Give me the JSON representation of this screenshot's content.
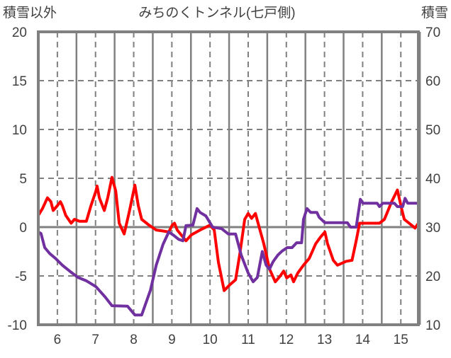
{
  "chart_data": {
    "type": "line",
    "title": "みちのくトンネル(七戸側)",
    "ylabel": "積雪以外",
    "y2label": "積雪",
    "xlim": [
      5.5,
      15.46
    ],
    "ylim": [
      -10,
      20
    ],
    "y2lim": [
      10,
      70
    ],
    "yticks": [
      -10,
      -5,
      0,
      5,
      10,
      15,
      20
    ],
    "y2ticks": [
      10,
      20,
      30,
      40,
      50,
      60,
      70
    ],
    "xticks": [
      6,
      7,
      8,
      9,
      10,
      11,
      12,
      13,
      14,
      15
    ],
    "grid": true,
    "colors": {
      "red": "#ff0000",
      "purple": "#7030a0",
      "frame": "#808080"
    },
    "series": [
      {
        "name": "積雪以外",
        "axis": "left",
        "color": "#ff0000",
        "points": [
          [
            5.5,
            1.2
          ],
          [
            5.61,
            1.9
          ],
          [
            5.74,
            3.0
          ],
          [
            5.83,
            2.6
          ],
          [
            5.89,
            1.7
          ],
          [
            5.98,
            2.1
          ],
          [
            6.08,
            2.6
          ],
          [
            6.13,
            2.2
          ],
          [
            6.22,
            1.2
          ],
          [
            6.36,
            0.4
          ],
          [
            6.45,
            0.8
          ],
          [
            6.58,
            0.6
          ],
          [
            6.76,
            0.6
          ],
          [
            6.88,
            2.2
          ],
          [
            7.01,
            3.7
          ],
          [
            7.04,
            4.2
          ],
          [
            7.1,
            3.0
          ],
          [
            7.23,
            1.7
          ],
          [
            7.32,
            3.0
          ],
          [
            7.43,
            5.1
          ],
          [
            7.53,
            3.7
          ],
          [
            7.62,
            0.4
          ],
          [
            7.75,
            -0.7
          ],
          [
            7.88,
            1.5
          ],
          [
            8.03,
            4.3
          ],
          [
            8.12,
            2.2
          ],
          [
            8.21,
            0.8
          ],
          [
            8.4,
            0.2
          ],
          [
            8.59,
            -0.3
          ],
          [
            8.77,
            -0.4
          ],
          [
            8.92,
            -0.5
          ],
          [
            9.01,
            0.2
          ],
          [
            9.07,
            0.4
          ],
          [
            9.14,
            -0.3
          ],
          [
            9.37,
            -1.4
          ],
          [
            9.51,
            -0.8
          ],
          [
            9.74,
            -0.3
          ],
          [
            10.0,
            0.2
          ],
          [
            10.11,
            -0.3
          ],
          [
            10.22,
            -3.6
          ],
          [
            10.37,
            -6.5
          ],
          [
            10.52,
            -5.9
          ],
          [
            10.67,
            -5.4
          ],
          [
            10.78,
            -2.8
          ],
          [
            10.91,
            0.8
          ],
          [
            11.0,
            1.4
          ],
          [
            11.09,
            0.9
          ],
          [
            11.19,
            1.4
          ],
          [
            11.28,
            0.1
          ],
          [
            11.41,
            -1.7
          ],
          [
            11.56,
            -4.3
          ],
          [
            11.71,
            -5.6
          ],
          [
            11.84,
            -5.0
          ],
          [
            11.93,
            -4.5
          ],
          [
            12.01,
            -5.2
          ],
          [
            12.12,
            -4.9
          ],
          [
            12.19,
            -5.6
          ],
          [
            12.3,
            -4.7
          ],
          [
            12.45,
            -3.9
          ],
          [
            12.6,
            -3.2
          ],
          [
            12.77,
            -1.7
          ],
          [
            12.9,
            -1.0
          ],
          [
            13.01,
            -0.5
          ],
          [
            13.08,
            -1.7
          ],
          [
            13.23,
            -3.4
          ],
          [
            13.34,
            -3.9
          ],
          [
            13.57,
            -3.5
          ],
          [
            13.72,
            -3.4
          ],
          [
            13.83,
            -1.4
          ],
          [
            13.92,
            0.4
          ],
          [
            14.16,
            0.4
          ],
          [
            14.44,
            0.4
          ],
          [
            14.57,
            0.8
          ],
          [
            14.76,
            2.6
          ],
          [
            14.91,
            3.8
          ],
          [
            15.02,
            1.9
          ],
          [
            15.09,
            0.8
          ],
          [
            15.28,
            0.2
          ],
          [
            15.37,
            -0.1
          ],
          [
            15.46,
            0.4
          ]
        ]
      },
      {
        "name": "積雪",
        "axis": "right",
        "color": "#7030a0",
        "points": [
          [
            5.5,
            29.0
          ],
          [
            5.57,
            28.7
          ],
          [
            5.67,
            25.8
          ],
          [
            5.8,
            24.6
          ],
          [
            5.95,
            23.6
          ],
          [
            6.13,
            22.2
          ],
          [
            6.32,
            21.0
          ],
          [
            6.54,
            19.7
          ],
          [
            6.76,
            19.0
          ],
          [
            7.01,
            17.8
          ],
          [
            7.25,
            15.7
          ],
          [
            7.43,
            13.9
          ],
          [
            7.84,
            13.8
          ],
          [
            8.03,
            12.0
          ],
          [
            8.21,
            12.0
          ],
          [
            8.44,
            17.1
          ],
          [
            8.59,
            22.2
          ],
          [
            8.77,
            26.5
          ],
          [
            8.92,
            29.0
          ],
          [
            9.05,
            28.3
          ],
          [
            9.18,
            27.5
          ],
          [
            9.29,
            27.2
          ],
          [
            9.37,
            30.3
          ],
          [
            9.55,
            30.4
          ],
          [
            9.66,
            33.8
          ],
          [
            9.74,
            33.0
          ],
          [
            9.89,
            32.3
          ],
          [
            10.07,
            30.0
          ],
          [
            10.3,
            29.7
          ],
          [
            10.48,
            28.6
          ],
          [
            10.67,
            28.6
          ],
          [
            10.82,
            24.2
          ],
          [
            11.0,
            20.6
          ],
          [
            11.13,
            18.8
          ],
          [
            11.24,
            19.7
          ],
          [
            11.37,
            25.0
          ],
          [
            11.47,
            22.2
          ],
          [
            11.56,
            21.4
          ],
          [
            11.65,
            22.9
          ],
          [
            11.78,
            24.3
          ],
          [
            11.89,
            25.1
          ],
          [
            12.02,
            25.8
          ],
          [
            12.15,
            25.8
          ],
          [
            12.27,
            26.8
          ],
          [
            12.4,
            26.8
          ],
          [
            12.45,
            31.6
          ],
          [
            12.54,
            33.8
          ],
          [
            12.64,
            33.0
          ],
          [
            12.8,
            33.0
          ],
          [
            12.86,
            32.0
          ],
          [
            13.01,
            30.9
          ],
          [
            13.6,
            30.9
          ],
          [
            13.68,
            30.0
          ],
          [
            13.83,
            30.0
          ],
          [
            13.94,
            35.7
          ],
          [
            14.01,
            34.9
          ],
          [
            14.38,
            34.9
          ],
          [
            14.44,
            34.2
          ],
          [
            14.53,
            34.9
          ],
          [
            14.83,
            34.9
          ],
          [
            14.91,
            34.2
          ],
          [
            15.05,
            34.2
          ],
          [
            15.11,
            35.9
          ],
          [
            15.18,
            34.9
          ],
          [
            15.46,
            34.9
          ]
        ]
      }
    ]
  }
}
